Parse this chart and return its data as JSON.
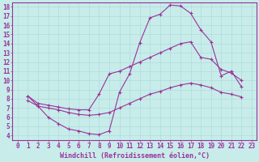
{
  "title": "",
  "xlabel": "Windchill (Refroidissement éolien,°C)",
  "ylabel": "",
  "xlim": [
    -0.5,
    23.5
  ],
  "ylim": [
    3.5,
    18.5
  ],
  "xticks": [
    0,
    1,
    2,
    3,
    4,
    5,
    6,
    7,
    8,
    9,
    10,
    11,
    12,
    13,
    14,
    15,
    16,
    17,
    18,
    19,
    20,
    21,
    22,
    23
  ],
  "yticks": [
    4,
    5,
    6,
    7,
    8,
    9,
    10,
    11,
    12,
    13,
    14,
    15,
    16,
    17,
    18
  ],
  "bg_color": "#c8ecea",
  "line_color": "#993399",
  "grid_color": "#aadddd",
  "line1_x": [
    1,
    2,
    3,
    4,
    5,
    6,
    7,
    8,
    9,
    10,
    11,
    12,
    13,
    14,
    15,
    16,
    17,
    18,
    19,
    20,
    21,
    22
  ],
  "line1_y": [
    8.3,
    7.2,
    6.0,
    5.3,
    4.7,
    4.5,
    4.2,
    4.1,
    4.5,
    8.7,
    10.7,
    14.1,
    16.8,
    17.2,
    18.2,
    18.1,
    17.3,
    15.5,
    14.2,
    10.5,
    11.0,
    9.3
  ],
  "line2_x": [
    1,
    2,
    3,
    4,
    5,
    6,
    7,
    8,
    9,
    10,
    11,
    12,
    13,
    14,
    15,
    16,
    17,
    18,
    19,
    20,
    21,
    22
  ],
  "line2_y": [
    8.3,
    7.5,
    7.3,
    7.1,
    6.9,
    6.8,
    6.8,
    8.5,
    10.7,
    11.0,
    11.5,
    12.0,
    12.5,
    13.0,
    13.5,
    14.0,
    14.2,
    12.5,
    12.3,
    11.2,
    10.8,
    10.0
  ],
  "line3_x": [
    1,
    2,
    3,
    4,
    5,
    6,
    7,
    8,
    9,
    10,
    11,
    12,
    13,
    14,
    15,
    16,
    17,
    18,
    19,
    20,
    21,
    22
  ],
  "line3_y": [
    7.8,
    7.2,
    7.0,
    6.8,
    6.5,
    6.3,
    6.2,
    6.3,
    6.5,
    7.0,
    7.5,
    8.0,
    8.5,
    8.8,
    9.2,
    9.5,
    9.7,
    9.5,
    9.2,
    8.7,
    8.5,
    8.2
  ],
  "font_size_ticks": 5.5,
  "font_size_xlabel": 6.0,
  "marker": "+"
}
